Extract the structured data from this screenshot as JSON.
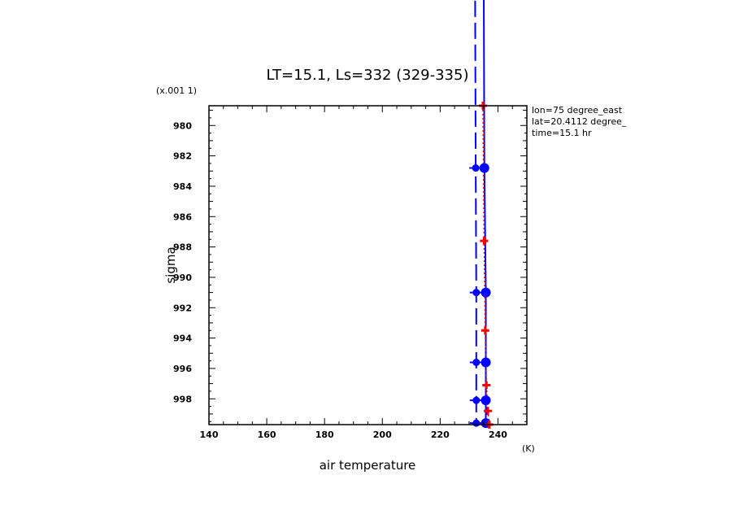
{
  "chart_data": {
    "type": "line",
    "title": "LT=15.1, Ls=332 (329-335)",
    "xlabel": "air temperature",
    "ylabel": "sigma",
    "x_unit": "(K)",
    "y_unit": "(x.001 1)",
    "xlim": [
      140,
      250
    ],
    "ylim": [
      999.7,
      978.7
    ],
    "x_ticks": [
      140,
      160,
      180,
      200,
      220,
      240
    ],
    "y_ticks": [
      980,
      982,
      984,
      986,
      988,
      990,
      992,
      994,
      996,
      998
    ],
    "annotations": [
      "lon=75 degree_east",
      "lat=20.4112 degree_",
      "time=15.1 hr"
    ],
    "series": [
      {
        "style": "solid",
        "color": "#0000ff",
        "marker": "circle",
        "points": [
          [
            235,
            966
          ],
          [
            235.3,
            982.8
          ],
          [
            235.8,
            991
          ],
          [
            235.8,
            995.6
          ],
          [
            235.8,
            998.1
          ],
          [
            235.8,
            999.6
          ]
        ]
      },
      {
        "style": "dashed",
        "color": "#0000ff",
        "marker": "circle-small",
        "points": [
          [
            232,
            966
          ],
          [
            232.3,
            982.8
          ],
          [
            232.5,
            991
          ],
          [
            232.5,
            995.6
          ],
          [
            232.5,
            998.1
          ],
          [
            232.5,
            999.6
          ]
        ]
      },
      {
        "style": "dotted",
        "color": "#ff0000",
        "marker": "plus",
        "points": [
          [
            234.8,
            978.7
          ],
          [
            235.2,
            987.6
          ],
          [
            235.6,
            993.5
          ],
          [
            236,
            997.1
          ],
          [
            236.5,
            998.8
          ],
          [
            237,
            999.7
          ]
        ]
      }
    ]
  }
}
